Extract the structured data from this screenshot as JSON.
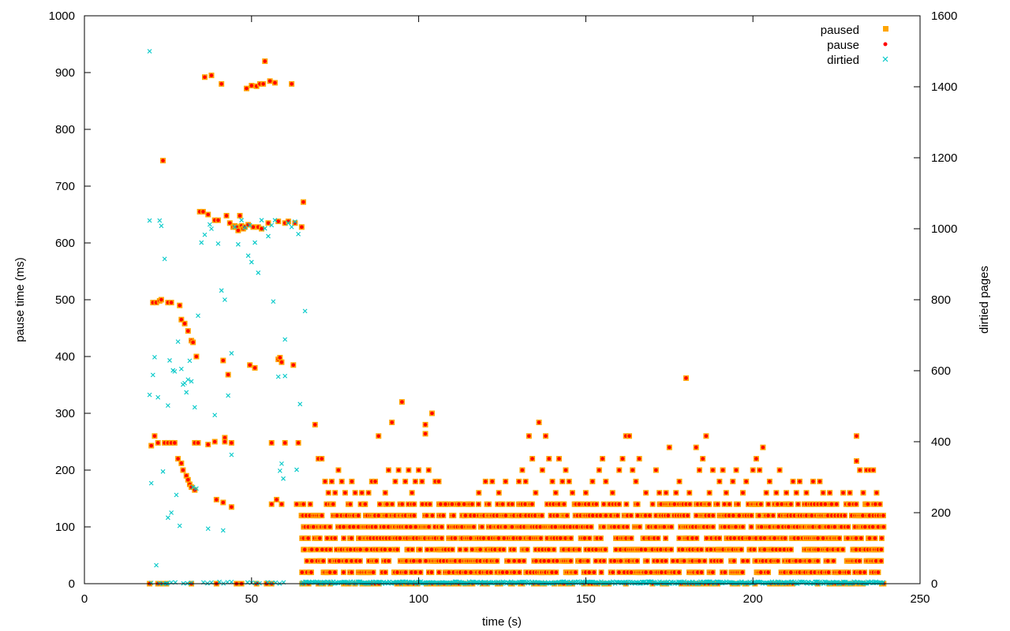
{
  "chart_data": {
    "type": "scatter",
    "title": "",
    "xlabel": "time (s)",
    "ylabel": "pause time (ms)",
    "y2label": "dirtied pages",
    "xlim": [
      0,
      250
    ],
    "ylim": [
      0,
      1000
    ],
    "y2lim": [
      0,
      1600
    ],
    "xticks": [
      0,
      50,
      100,
      150,
      200,
      250
    ],
    "yticks": [
      0,
      100,
      200,
      300,
      400,
      500,
      600,
      700,
      800,
      900,
      1000
    ],
    "y2ticks": [
      0,
      200,
      400,
      600,
      800,
      1000,
      1200,
      1400,
      1600
    ],
    "grid": false,
    "legend_position": "top-right",
    "legend": [
      "paused",
      "pause",
      "dirtied"
    ],
    "colors": {
      "paused": "#ffa500",
      "pause": "#ff0000",
      "dirtied": "#00c8c8"
    },
    "pause_points": [
      [
        19.5,
        0
      ],
      [
        20,
        243
      ],
      [
        20.5,
        495
      ],
      [
        21,
        260
      ],
      [
        21.5,
        495
      ],
      [
        22,
        0
      ],
      [
        22,
        248
      ],
      [
        22.5,
        498
      ],
      [
        23,
        500
      ],
      [
        23.5,
        745
      ],
      [
        24,
        248
      ],
      [
        25,
        248
      ],
      [
        25,
        495
      ],
      [
        26,
        248
      ],
      [
        26,
        495
      ],
      [
        27,
        248
      ],
      [
        28,
        220
      ],
      [
        28.5,
        490
      ],
      [
        29,
        212
      ],
      [
        29,
        465
      ],
      [
        29.5,
        200
      ],
      [
        30,
        458
      ],
      [
        30.5,
        190
      ],
      [
        31,
        183
      ],
      [
        31,
        445
      ],
      [
        31.5,
        175
      ],
      [
        32,
        170
      ],
      [
        32,
        428
      ],
      [
        32.5,
        425
      ],
      [
        33,
        165
      ],
      [
        33,
        248
      ],
      [
        33.5,
        400
      ],
      [
        34,
        248
      ],
      [
        34.5,
        655
      ],
      [
        35.5,
        655
      ],
      [
        36,
        892
      ],
      [
        37,
        650
      ],
      [
        37,
        245
      ],
      [
        38,
        895
      ],
      [
        39,
        250
      ],
      [
        39,
        640
      ],
      [
        39.5,
        148
      ],
      [
        40,
        640
      ],
      [
        41,
        880
      ],
      [
        41.5,
        143
      ],
      [
        41.5,
        393
      ],
      [
        42,
        257
      ],
      [
        42,
        250
      ],
      [
        42.5,
        648
      ],
      [
        43,
        368
      ],
      [
        43.5,
        635
      ],
      [
        44,
        248
      ],
      [
        44,
        135
      ],
      [
        44.5,
        628
      ],
      [
        45,
        630
      ],
      [
        45.5,
        628
      ],
      [
        46,
        622
      ],
      [
        46.5,
        648
      ],
      [
        47,
        630
      ],
      [
        47.5,
        625
      ],
      [
        48,
        628
      ],
      [
        48.5,
        872
      ],
      [
        49,
        632
      ],
      [
        49.5,
        385
      ],
      [
        50,
        877
      ],
      [
        50.5,
        628
      ],
      [
        51,
        380
      ],
      [
        51.5,
        876
      ],
      [
        52,
        628
      ],
      [
        52.5,
        880
      ],
      [
        53,
        625
      ],
      [
        53.5,
        880
      ],
      [
        54,
        920
      ],
      [
        55,
        635
      ],
      [
        55.5,
        885
      ],
      [
        56,
        248
      ],
      [
        56,
        140
      ],
      [
        57,
        882
      ],
      [
        57.5,
        148
      ],
      [
        58,
        638
      ],
      [
        58,
        395
      ],
      [
        58.5,
        398
      ],
      [
        59,
        390
      ],
      [
        59,
        140
      ],
      [
        60,
        635
      ],
      [
        60,
        248
      ],
      [
        61,
        638
      ],
      [
        62,
        880
      ],
      [
        62.5,
        385
      ],
      [
        63,
        635
      ],
      [
        63.5,
        140
      ],
      [
        64,
        248
      ],
      [
        65,
        628
      ],
      [
        65.5,
        672
      ],
      [
        69,
        280
      ],
      [
        70,
        220
      ],
      [
        71,
        220
      ],
      [
        72,
        180
      ],
      [
        73,
        160
      ],
      [
        74,
        180
      ],
      [
        75,
        160
      ],
      [
        76,
        200
      ],
      [
        77,
        180
      ],
      [
        78,
        160
      ],
      [
        80,
        180
      ],
      [
        81,
        160
      ],
      [
        83,
        160
      ],
      [
        84,
        140
      ],
      [
        85,
        160
      ],
      [
        86,
        180
      ],
      [
        87,
        180
      ],
      [
        88,
        260
      ],
      [
        90,
        160
      ],
      [
        91,
        200
      ],
      [
        92,
        284
      ],
      [
        93,
        180
      ],
      [
        94,
        200
      ],
      [
        95,
        320
      ],
      [
        96,
        180
      ],
      [
        97,
        200
      ],
      [
        98,
        160
      ],
      [
        99,
        180
      ],
      [
        100,
        200
      ],
      [
        101,
        180
      ],
      [
        102,
        280
      ],
      [
        102,
        264
      ],
      [
        103,
        200
      ],
      [
        104,
        300
      ],
      [
        105,
        180
      ],
      [
        106,
        180
      ],
      [
        108,
        140
      ],
      [
        110,
        140
      ],
      [
        112,
        140
      ],
      [
        114,
        120
      ],
      [
        116,
        140
      ],
      [
        118,
        160
      ],
      [
        120,
        180
      ],
      [
        121,
        140
      ],
      [
        122,
        180
      ],
      [
        124,
        160
      ],
      [
        126,
        180
      ],
      [
        128,
        140
      ],
      [
        130,
        180
      ],
      [
        131,
        200
      ],
      [
        132,
        180
      ],
      [
        133,
        260
      ],
      [
        134,
        220
      ],
      [
        135,
        160
      ],
      [
        136,
        284
      ],
      [
        137,
        200
      ],
      [
        138,
        260
      ],
      [
        139,
        220
      ],
      [
        140,
        180
      ],
      [
        141,
        160
      ],
      [
        142,
        220
      ],
      [
        143,
        180
      ],
      [
        144,
        200
      ],
      [
        145,
        180
      ],
      [
        146,
        160
      ],
      [
        148,
        140
      ],
      [
        150,
        160
      ],
      [
        152,
        180
      ],
      [
        154,
        200
      ],
      [
        155,
        220
      ],
      [
        156,
        180
      ],
      [
        158,
        160
      ],
      [
        160,
        200
      ],
      [
        161,
        220
      ],
      [
        162,
        260
      ],
      [
        163,
        260
      ],
      [
        164,
        200
      ],
      [
        165,
        180
      ],
      [
        166,
        220
      ],
      [
        168,
        160
      ],
      [
        170,
        140
      ],
      [
        171,
        200
      ],
      [
        172,
        160
      ],
      [
        174,
        160
      ],
      [
        175,
        240
      ],
      [
        177,
        160
      ],
      [
        178,
        180
      ],
      [
        180,
        362
      ],
      [
        181,
        160
      ],
      [
        183,
        240
      ],
      [
        184,
        200
      ],
      [
        185,
        220
      ],
      [
        186,
        260
      ],
      [
        187,
        160
      ],
      [
        188,
        200
      ],
      [
        190,
        180
      ],
      [
        191,
        200
      ],
      [
        192,
        160
      ],
      [
        194,
        180
      ],
      [
        195,
        200
      ],
      [
        197,
        160
      ],
      [
        198,
        180
      ],
      [
        200,
        200
      ],
      [
        201,
        220
      ],
      [
        202,
        200
      ],
      [
        203,
        240
      ],
      [
        204,
        160
      ],
      [
        205,
        180
      ],
      [
        207,
        160
      ],
      [
        208,
        200
      ],
      [
        210,
        160
      ],
      [
        212,
        180
      ],
      [
        213,
        160
      ],
      [
        214,
        180
      ],
      [
        216,
        160
      ],
      [
        218,
        180
      ],
      [
        220,
        180
      ],
      [
        221,
        160
      ],
      [
        223,
        160
      ],
      [
        225,
        140
      ],
      [
        227,
        160
      ],
      [
        229,
        160
      ],
      [
        231,
        216
      ],
      [
        231,
        260
      ],
      [
        232,
        200
      ],
      [
        233,
        160
      ],
      [
        234,
        200
      ],
      [
        235,
        200
      ],
      [
        236,
        200
      ],
      [
        237,
        160
      ],
      [
        238,
        140
      ],
      [
        239,
        120
      ]
    ],
    "pause_bands": [
      0,
      20,
      40,
      60,
      80,
      100,
      120,
      140
    ],
    "pause_dense_range": [
      65,
      239
    ],
    "dirtied_points": [
      [
        19.5,
        1500
      ],
      [
        19.5,
        1023
      ],
      [
        19.5,
        532
      ],
      [
        20,
        283
      ],
      [
        20.5,
        588
      ],
      [
        21,
        638
      ],
      [
        21.5,
        52
      ],
      [
        22,
        525
      ],
      [
        22.5,
        1023
      ],
      [
        23,
        1008
      ],
      [
        23.5,
        316
      ],
      [
        24,
        915
      ],
      [
        24.5,
        1
      ],
      [
        25,
        502
      ],
      [
        25,
        186
      ],
      [
        25.5,
        629
      ],
      [
        26,
        200
      ],
      [
        26.5,
        601
      ],
      [
        27,
        598
      ],
      [
        27.5,
        250
      ],
      [
        28,
        682
      ],
      [
        28.5,
        163
      ],
      [
        29,
        605
      ],
      [
        29.5,
        561
      ],
      [
        30,
        565
      ],
      [
        30.5,
        539
      ],
      [
        31,
        575
      ],
      [
        31.5,
        628
      ],
      [
        32,
        570
      ],
      [
        32.5,
        272
      ],
      [
        33,
        497
      ],
      [
        33.5,
        268
      ],
      [
        34,
        755
      ],
      [
        35,
        961
      ],
      [
        36,
        983
      ],
      [
        37,
        155
      ],
      [
        37.5,
        1012
      ],
      [
        38,
        1000
      ],
      [
        39,
        475
      ],
      [
        40,
        958
      ],
      [
        41,
        826
      ],
      [
        41.5,
        150
      ],
      [
        42,
        800
      ],
      [
        43,
        530
      ],
      [
        44,
        649
      ],
      [
        44,
        363
      ],
      [
        45,
        1005
      ],
      [
        46,
        956
      ],
      [
        47,
        1024
      ],
      [
        48,
        1003
      ],
      [
        49,
        924
      ],
      [
        49.5,
        1010
      ],
      [
        50,
        906
      ],
      [
        51,
        961
      ],
      [
        52,
        876
      ],
      [
        53,
        1024
      ],
      [
        54,
        1001
      ],
      [
        55,
        979
      ],
      [
        56,
        1010
      ],
      [
        56.5,
        795
      ],
      [
        57,
        1024
      ],
      [
        58,
        583
      ],
      [
        58.5,
        318
      ],
      [
        59,
        338
      ],
      [
        59.5,
        296
      ],
      [
        60,
        585
      ],
      [
        60,
        688
      ],
      [
        61,
        1016
      ],
      [
        62,
        1005
      ],
      [
        63,
        1020
      ],
      [
        63.5,
        321
      ],
      [
        64,
        985
      ],
      [
        64.5,
        506
      ],
      [
        66,
        768
      ]
    ],
    "dirtied_dense_range": [
      65,
      239
    ]
  }
}
